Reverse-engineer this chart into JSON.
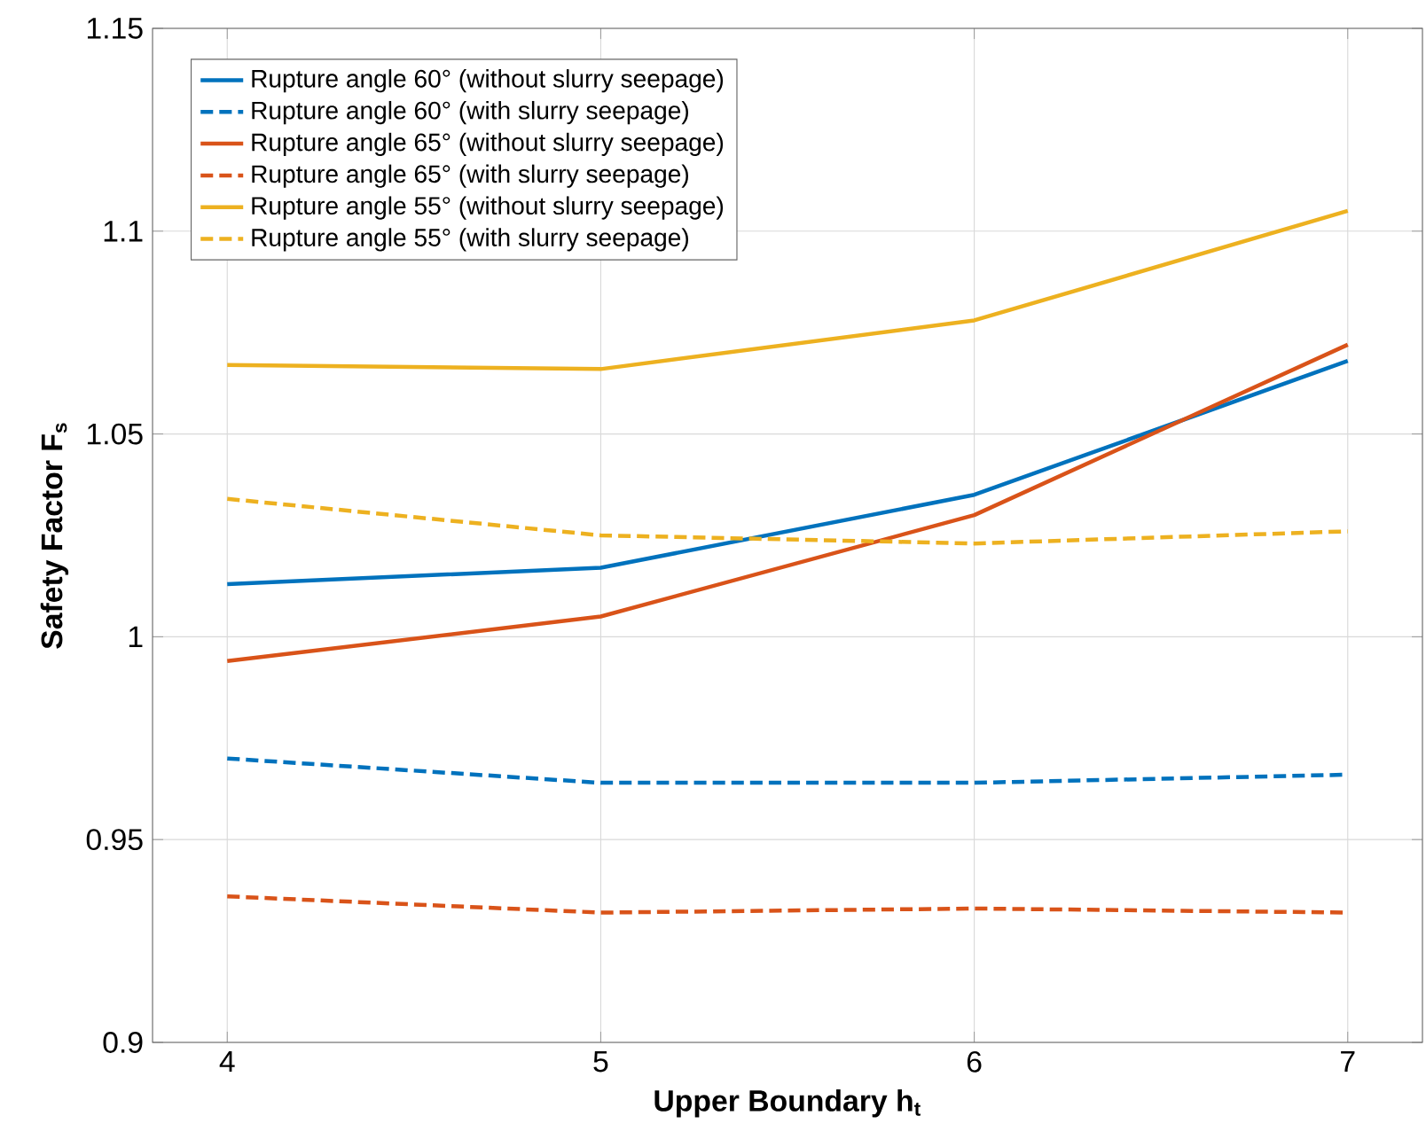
{
  "chart_data": {
    "type": "line",
    "xlabel": "Upper Boundary h$_{t}$",
    "ylabel": "Safety Factor F$_{s}$",
    "x": [
      4,
      5,
      6,
      7
    ],
    "series": [
      {
        "name": "Rupture angle 60° (without slurry seepage)",
        "color": "#0072bd",
        "line_style": "solid",
        "values": [
          1.013,
          1.017,
          1.035,
          1.068
        ]
      },
      {
        "name": "Rupture angle 60° (with slurry seepage)",
        "color": "#0072bd",
        "line_style": "dashed",
        "values": [
          0.97,
          0.964,
          0.964,
          0.966
        ]
      },
      {
        "name": "Rupture angle 65° (without slurry seepage)",
        "color": "#d95319",
        "line_style": "solid",
        "values": [
          0.994,
          1.005,
          1.03,
          1.072
        ]
      },
      {
        "name": "Rupture angle 65° (with slurry seepage)",
        "color": "#d95319",
        "line_style": "dashed",
        "values": [
          0.936,
          0.932,
          0.933,
          0.932
        ]
      },
      {
        "name": "Rupture angle 55° (without slurry seepage)",
        "color": "#edb120",
        "line_style": "solid",
        "values": [
          1.067,
          1.066,
          1.078,
          1.105
        ]
      },
      {
        "name": "Rupture angle 55° (with slurry seepage)",
        "color": "#edb120",
        "line_style": "dashed",
        "values": [
          1.034,
          1.025,
          1.023,
          1.026
        ]
      }
    ],
    "xlim": [
      3.8,
      7.2
    ],
    "ylim": [
      0.9,
      1.15
    ],
    "xticks": [
      4,
      5,
      6,
      7
    ],
    "yticks": [
      0.9,
      0.95,
      1,
      1.05,
      1.1,
      1.15
    ],
    "grid": true,
    "legend": "top left",
    "marker": "none"
  }
}
